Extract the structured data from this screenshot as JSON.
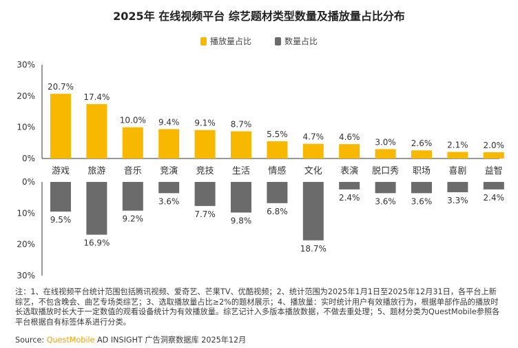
{
  "chart_data": {
    "type": "bar",
    "title": "2025年 在线视频平台 综艺题材类型数量及播放量占比分布",
    "categories": [
      "游戏",
      "旅游",
      "音乐",
      "竞演",
      "竞技",
      "生活",
      "情感",
      "文化",
      "表演",
      "脱口秀",
      "职场",
      "喜剧",
      "益智"
    ],
    "series": [
      {
        "name": "播放量占比",
        "values": [
          20.7,
          17.4,
          10.0,
          9.4,
          9.1,
          8.7,
          5.5,
          4.7,
          4.6,
          3.0,
          2.6,
          2.1,
          2.0
        ],
        "labels": [
          "20.7%",
          "17.4%",
          "10.0%",
          "9.4%",
          "9.1%",
          "8.7%",
          "5.5%",
          "4.7%",
          "4.6%",
          "3.0%",
          "2.6%",
          "2.1%",
          "2.0%"
        ]
      },
      {
        "name": "数量占比",
        "values": [
          9.5,
          16.9,
          9.2,
          3.6,
          7.7,
          9.8,
          6.8,
          18.7,
          2.4,
          3.6,
          3.6,
          3.3,
          2.4
        ],
        "labels": [
          "9.5%",
          "16.9%",
          "9.2%",
          "3.6%",
          "7.7%",
          "9.8%",
          "6.8%",
          "18.7%",
          "2.4%",
          "3.6%",
          "3.6%",
          "3.3%",
          "2.4%"
        ]
      }
    ],
    "upper_ticks": [
      "30%",
      "20%",
      "10%",
      "0%"
    ],
    "lower_ticks": [
      "0%",
      "10%",
      "20%",
      "30%"
    ],
    "ylim": [
      0,
      30
    ],
    "colors": {
      "play": "#f8b800",
      "count": "#6b6b6b"
    },
    "legend_position": "top-center"
  },
  "notes": "注：1、在线视频平台统计范围包括腾讯视频、爱奇艺、芒果TV、优酷视频；2、统计范围为2025年1月1日至2025年12月31日，各平台上新综艺，不包含晚会、曲艺专场类综艺；3、选取播放量占比≥2%的题材展示；4、播放量：实时统计用户有效播放行为，根据单部作品的播放时长选取播放时长大于一定数值的观看设备统计为有效播放量。综艺记计入多版本播放数据，不做去重处理；5、题材分类为QuestMobile参照各平台根据自有标签体系进行分类。",
  "source": {
    "prefix": "Source: ",
    "brand": "QuestMobile",
    "suffix": " AD INSIGHT 广告洞察数据库 2025年12月"
  }
}
